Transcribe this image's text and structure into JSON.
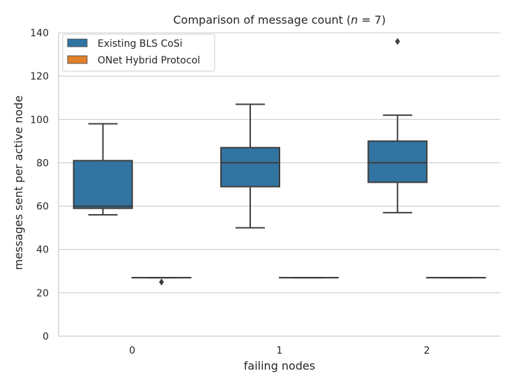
{
  "chart_data": {
    "type": "box",
    "title_prefix": "Comparison of message count (",
    "title_n": "n",
    "title_eq": " = 7)",
    "xlabel": "failing nodes",
    "ylabel": "messages sent per active node",
    "categories": [
      "0",
      "1",
      "2"
    ],
    "ylim": [
      0,
      140
    ],
    "yticks": [
      0,
      20,
      40,
      60,
      80,
      100,
      120,
      140
    ],
    "grid": "horizontal",
    "legend_position": "top-left",
    "series": [
      {
        "name": "Existing BLS CoSi",
        "color": "#3274a1",
        "boxes": [
          {
            "whisker_low": 56,
            "q1": 59,
            "median": 60,
            "q3": 81,
            "whisker_high": 98,
            "outliers": []
          },
          {
            "whisker_low": 50,
            "q1": 69,
            "median": 80,
            "q3": 87,
            "whisker_high": 107,
            "outliers": []
          },
          {
            "whisker_low": 57,
            "q1": 71,
            "median": 80,
            "q3": 90,
            "whisker_high": 102,
            "outliers": [
              136
            ]
          }
        ]
      },
      {
        "name": "ONet Hybrid Protocol",
        "color": "#e1812c",
        "boxes": [
          {
            "whisker_low": 27,
            "q1": 27,
            "median": 27,
            "q3": 27,
            "whisker_high": 27,
            "outliers": [
              25
            ]
          },
          {
            "whisker_low": 27,
            "q1": 27,
            "median": 27,
            "q3": 27,
            "whisker_high": 27,
            "outliers": []
          },
          {
            "whisker_low": 27,
            "q1": 27,
            "median": 27,
            "q3": 27,
            "whisker_high": 27,
            "outliers": []
          }
        ]
      }
    ]
  }
}
